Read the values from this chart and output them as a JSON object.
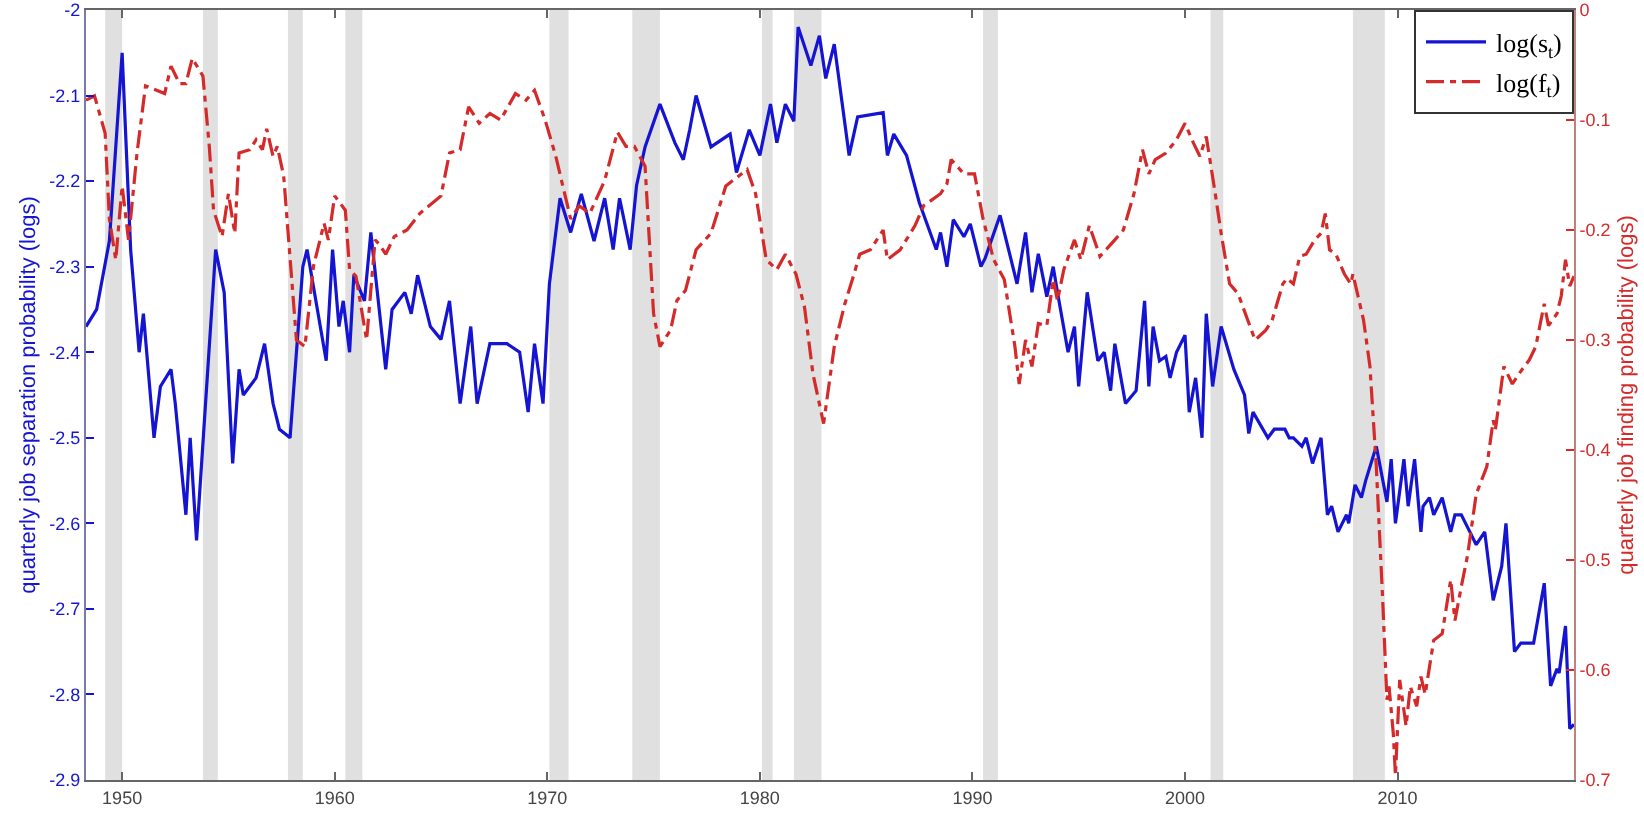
{
  "chart_data": {
    "type": "line",
    "ylabel": "quarterly job separation probability (logs)",
    "y2label": "quarterly job finding probability (logs)",
    "xlim": [
      1948.3,
      2018.3
    ],
    "xticks": [
      1950,
      1960,
      1970,
      1980,
      1990,
      2000,
      2010
    ],
    "ylim": [
      -2.9,
      -2
    ],
    "yticks": [
      -2.9,
      -2.8,
      -2.7,
      -2.6,
      -2.5,
      -2.4,
      -2.3,
      -2.2,
      -2.1,
      -2
    ],
    "y2lim": [
      -0.7,
      0
    ],
    "y2ticks": [
      -0.7,
      -0.6,
      -0.5,
      -0.4,
      -0.3,
      -0.2,
      -0.1,
      0
    ],
    "grid": false,
    "legend": "top right",
    "marker": "none",
    "bands": [
      {
        "axis": "x",
        "from": 1949.2,
        "to": 1950.0,
        "color": "#e0e0e0"
      },
      {
        "axis": "x",
        "from": 1953.8,
        "to": 1954.5,
        "color": "#e0e0e0"
      },
      {
        "axis": "x",
        "from": 1957.8,
        "to": 1958.5,
        "color": "#e0e0e0"
      },
      {
        "axis": "x",
        "from": 1960.5,
        "to": 1961.3,
        "color": "#e0e0e0"
      },
      {
        "axis": "x",
        "from": 1970.1,
        "to": 1971.0,
        "color": "#e0e0e0"
      },
      {
        "axis": "x",
        "from": 1974.0,
        "to": 1975.3,
        "color": "#e0e0e0"
      },
      {
        "axis": "x",
        "from": 1980.1,
        "to": 1980.6,
        "color": "#e0e0e0"
      },
      {
        "axis": "x",
        "from": 1981.6,
        "to": 1982.9,
        "color": "#e0e0e0"
      },
      {
        "axis": "x",
        "from": 1990.5,
        "to": 1991.2,
        "color": "#e0e0e0"
      },
      {
        "axis": "x",
        "from": 2001.2,
        "to": 2001.8,
        "color": "#e0e0e0"
      },
      {
        "axis": "x",
        "from": 2007.9,
        "to": 2009.4,
        "color": "#e0e0e0"
      }
    ],
    "series": [
      {
        "name": "log(s$_{t}$)",
        "color": "#1414d2",
        "line_style": "solid",
        "x": [
          1948.3,
          1948.8,
          1949.4,
          1950.0,
          1950.4,
          1950.8,
          1951.0,
          1951.5,
          1951.8,
          1952.3,
          1952.5,
          1953.0,
          1953.2,
          1953.5,
          1954.4,
          1954.8,
          1955.2,
          1955.5,
          1955.7,
          1956.3,
          1956.7,
          1957.1,
          1957.4,
          1957.9,
          1958.5,
          1958.7,
          1959.6,
          1959.9,
          1960.2,
          1960.4,
          1960.7,
          1960.9,
          1961.4,
          1961.7,
          1962.4,
          1962.7,
          1963.3,
          1963.6,
          1963.9,
          1964.5,
          1965.0,
          1965.4,
          1965.9,
          1966.4,
          1966.7,
          1967.3,
          1968.1,
          1968.7,
          1969.1,
          1969.4,
          1969.8,
          1970.1,
          1970.6,
          1971.1,
          1971.6,
          1972.2,
          1972.7,
          1973.1,
          1973.4,
          1973.9,
          1974.2,
          1974.6,
          1975.3,
          1976.0,
          1976.4,
          1976.7,
          1977.0,
          1977.7,
          1978.6,
          1978.9,
          1979.5,
          1980.0,
          1980.5,
          1980.8,
          1981.2,
          1981.6,
          1981.8,
          1982.4,
          1982.8,
          1983.1,
          1983.5,
          1984.2,
          1984.6,
          1985.8,
          1986.0,
          1986.3,
          1986.9,
          1987.5,
          1988.3,
          1988.5,
          1988.8,
          1989.1,
          1989.6,
          1989.9,
          1990.4,
          1990.6,
          1991.3,
          1992.1,
          1992.5,
          1992.8,
          1993.1,
          1993.5,
          1993.8,
          1994.0,
          1994.5,
          1994.8,
          1995.0,
          1995.4,
          1995.9,
          1996.2,
          1996.5,
          1996.7,
          1997.2,
          1997.7,
          1998.1,
          1998.3,
          1998.5,
          1998.8,
          1999.1,
          1999.3,
          1999.6,
          2000.0,
          2000.2,
          2000.5,
          2000.8,
          2001.0,
          2001.3,
          2001.7,
          2002.3,
          2002.8,
          2003.0,
          2003.2,
          2003.9,
          2004.2,
          2004.7,
          2004.9,
          2005.1,
          2005.5,
          2005.7,
          2006.0,
          2006.4,
          2006.7,
          2006.9,
          2007.2,
          2007.6,
          2007.7,
          2008.0,
          2008.3,
          2008.5,
          2009.0,
          2009.5,
          2009.7,
          2009.9,
          2010.3,
          2010.5,
          2010.8,
          2011.1,
          2011.2,
          2011.5,
          2011.7,
          2012.1,
          2012.5,
          2012.7,
          2013.0,
          2013.4,
          2013.7,
          2014.1,
          2014.5,
          2014.9,
          2015.1,
          2015.5,
          2015.8,
          2016.4,
          2016.9,
          2017.2,
          2017.5,
          2017.6,
          2017.9,
          2018.1,
          2018.3
        ],
        "values": [
          -2.37,
          -2.35,
          -2.27,
          -2.05,
          -2.28,
          -2.4,
          -2.355,
          -2.5,
          -2.44,
          -2.42,
          -2.46,
          -2.59,
          -2.5,
          -2.62,
          -2.28,
          -2.33,
          -2.53,
          -2.42,
          -2.45,
          -2.43,
          -2.39,
          -2.46,
          -2.49,
          -2.5,
          -2.3,
          -2.28,
          -2.41,
          -2.28,
          -2.37,
          -2.34,
          -2.4,
          -2.31,
          -2.34,
          -2.26,
          -2.42,
          -2.35,
          -2.33,
          -2.355,
          -2.31,
          -2.37,
          -2.385,
          -2.34,
          -2.46,
          -2.37,
          -2.46,
          -2.39,
          -2.39,
          -2.4,
          -2.47,
          -2.39,
          -2.46,
          -2.32,
          -2.22,
          -2.26,
          -2.215,
          -2.27,
          -2.22,
          -2.28,
          -2.22,
          -2.28,
          -2.205,
          -2.16,
          -2.11,
          -2.155,
          -2.175,
          -2.14,
          -2.1,
          -2.16,
          -2.145,
          -2.19,
          -2.14,
          -2.17,
          -2.11,
          -2.155,
          -2.11,
          -2.13,
          -2.02,
          -2.065,
          -2.03,
          -2.08,
          -2.04,
          -2.17,
          -2.125,
          -2.12,
          -2.17,
          -2.145,
          -2.17,
          -2.225,
          -2.28,
          -2.26,
          -2.3,
          -2.245,
          -2.265,
          -2.25,
          -2.3,
          -2.29,
          -2.24,
          -2.32,
          -2.26,
          -2.33,
          -2.285,
          -2.335,
          -2.3,
          -2.33,
          -2.4,
          -2.37,
          -2.44,
          -2.33,
          -2.41,
          -2.4,
          -2.445,
          -2.39,
          -2.46,
          -2.445,
          -2.34,
          -2.44,
          -2.37,
          -2.41,
          -2.405,
          -2.43,
          -2.4,
          -2.38,
          -2.47,
          -2.43,
          -2.5,
          -2.355,
          -2.44,
          -2.37,
          -2.42,
          -2.45,
          -2.495,
          -2.47,
          -2.5,
          -2.49,
          -2.49,
          -2.5,
          -2.5,
          -2.51,
          -2.5,
          -2.53,
          -2.5,
          -2.59,
          -2.58,
          -2.61,
          -2.59,
          -2.6,
          -2.555,
          -2.57,
          -2.55,
          -2.51,
          -2.575,
          -2.525,
          -2.6,
          -2.525,
          -2.58,
          -2.525,
          -2.61,
          -2.58,
          -2.57,
          -2.59,
          -2.57,
          -2.61,
          -2.59,
          -2.59,
          -2.61,
          -2.625,
          -2.61,
          -2.69,
          -2.65,
          -2.6,
          -2.75,
          -2.74,
          -2.74,
          -2.67,
          -2.79,
          -2.77,
          -2.775,
          -2.72,
          -2.84,
          -2.835
        ]
      },
      {
        "name": "log(f$_{t}$)",
        "color": "#d42a2a",
        "line_style": "dashed",
        "axis": "y2",
        "x": [
          1948.3,
          1948.7,
          1949.2,
          1949.4,
          1949.7,
          1950.0,
          1950.3,
          1950.7,
          1951.1,
          1952.0,
          1952.3,
          1952.7,
          1953.0,
          1953.3,
          1953.8,
          1954.1,
          1954.3,
          1954.7,
          1955.0,
          1955.3,
          1955.5,
          1956.0,
          1956.3,
          1956.6,
          1956.8,
          1957.1,
          1957.3,
          1957.6,
          1958.2,
          1958.6,
          1959.0,
          1959.5,
          1959.7,
          1960.0,
          1960.5,
          1960.7,
          1961.0,
          1961.5,
          1961.9,
          1962.1,
          1962.4,
          1962.8,
          1963.4,
          1964.0,
          1965.0,
          1965.4,
          1965.9,
          1966.3,
          1966.7,
          1966.8,
          1967.3,
          1967.8,
          1968.5,
          1969.0,
          1969.4,
          1969.9,
          1970.4,
          1971.1,
          1971.5,
          1972.0,
          1972.7,
          1973.3,
          1973.7,
          1974.1,
          1974.6,
          1975.0,
          1975.3,
          1975.8,
          1976.1,
          1976.5,
          1977.0,
          1977.7,
          1978.4,
          1979.4,
          1979.8,
          1980.3,
          1980.8,
          1981.2,
          1981.7,
          1982.1,
          1982.5,
          1983.0,
          1983.5,
          1984.0,
          1984.4,
          1984.7,
          1985.2,
          1985.8,
          1986.0,
          1986.6,
          1987.3,
          1987.7,
          1988.5,
          1988.8,
          1989.0,
          1989.6,
          1990.1,
          1990.5,
          1991.0,
          1991.5,
          1992.0,
          1992.2,
          1992.5,
          1992.8,
          1993.1,
          1993.5,
          1993.8,
          1994.0,
          1994.3,
          1994.8,
          1995.1,
          1995.5,
          1996.0,
          1996.7,
          1997.1,
          1997.6,
          1998.0,
          1998.3,
          1998.6,
          1999.1,
          1999.6,
          2000.0,
          2000.4,
          2000.7,
          2001.0,
          2001.4,
          2001.7,
          2002.1,
          2002.5,
          2003.2,
          2003.3,
          2003.8,
          2004.1,
          2004.6,
          2004.8,
          2005.1,
          2005.4,
          2005.7,
          2006.1,
          2006.4,
          2006.6,
          2006.8,
          2007.1,
          2007.5,
          2007.8,
          2007.9,
          2008.4,
          2008.7,
          2009.0,
          2009.3,
          2009.5,
          2009.6,
          2009.8,
          2009.9,
          2010.1,
          2010.4,
          2010.6,
          2010.9,
          2011.1,
          2011.3,
          2011.7,
          2012.1,
          2012.5,
          2012.7,
          2013.0,
          2013.3,
          2013.7,
          2014.2,
          2014.5,
          2014.6,
          2015.0,
          2015.4,
          2015.7,
          2016.2,
          2016.5,
          2016.9,
          2017.1,
          2017.5,
          2017.7,
          2017.9,
          2018.1,
          2018.3
        ],
        "values": [
          -0.082,
          -0.078,
          -0.112,
          -0.19,
          -0.227,
          -0.16,
          -0.209,
          -0.13,
          -0.069,
          -0.076,
          -0.051,
          -0.067,
          -0.067,
          -0.044,
          -0.06,
          -0.124,
          -0.182,
          -0.206,
          -0.167,
          -0.203,
          -0.13,
          -0.127,
          -0.118,
          -0.127,
          -0.108,
          -0.133,
          -0.124,
          -0.151,
          -0.3,
          -0.306,
          -0.233,
          -0.194,
          -0.209,
          -0.169,
          -0.182,
          -0.236,
          -0.242,
          -0.3,
          -0.209,
          -0.213,
          -0.222,
          -0.206,
          -0.2,
          -0.185,
          -0.169,
          -0.13,
          -0.127,
          -0.088,
          -0.1,
          -0.103,
          -0.094,
          -0.1,
          -0.076,
          -0.082,
          -0.073,
          -0.1,
          -0.133,
          -0.19,
          -0.178,
          -0.185,
          -0.155,
          -0.111,
          -0.124,
          -0.124,
          -0.142,
          -0.276,
          -0.306,
          -0.291,
          -0.264,
          -0.255,
          -0.218,
          -0.203,
          -0.16,
          -0.145,
          -0.167,
          -0.227,
          -0.236,
          -0.222,
          -0.24,
          -0.27,
          -0.331,
          -0.376,
          -0.306,
          -0.267,
          -0.242,
          -0.222,
          -0.218,
          -0.2,
          -0.227,
          -0.218,
          -0.196,
          -0.178,
          -0.167,
          -0.158,
          -0.136,
          -0.149,
          -0.149,
          -0.19,
          -0.227,
          -0.245,
          -0.306,
          -0.34,
          -0.3,
          -0.324,
          -0.285,
          -0.287,
          -0.245,
          -0.264,
          -0.236,
          -0.209,
          -0.227,
          -0.196,
          -0.224,
          -0.209,
          -0.2,
          -0.167,
          -0.127,
          -0.149,
          -0.136,
          -0.13,
          -0.118,
          -0.103,
          -0.121,
          -0.133,
          -0.115,
          -0.164,
          -0.203,
          -0.249,
          -0.258,
          -0.295,
          -0.3,
          -0.291,
          -0.282,
          -0.249,
          -0.244,
          -0.249,
          -0.224,
          -0.222,
          -0.209,
          -0.203,
          -0.185,
          -0.218,
          -0.222,
          -0.24,
          -0.249,
          -0.24,
          -0.282,
          -0.324,
          -0.415,
          -0.536,
          -0.627,
          -0.615,
          -0.658,
          -0.696,
          -0.609,
          -0.651,
          -0.615,
          -0.633,
          -0.606,
          -0.622,
          -0.573,
          -0.567,
          -0.518,
          -0.555,
          -0.524,
          -0.495,
          -0.44,
          -0.415,
          -0.373,
          -0.382,
          -0.324,
          -0.34,
          -0.331,
          -0.318,
          -0.306,
          -0.267,
          -0.287,
          -0.276,
          -0.26,
          -0.227,
          -0.251,
          -0.242
        ]
      }
    ]
  }
}
